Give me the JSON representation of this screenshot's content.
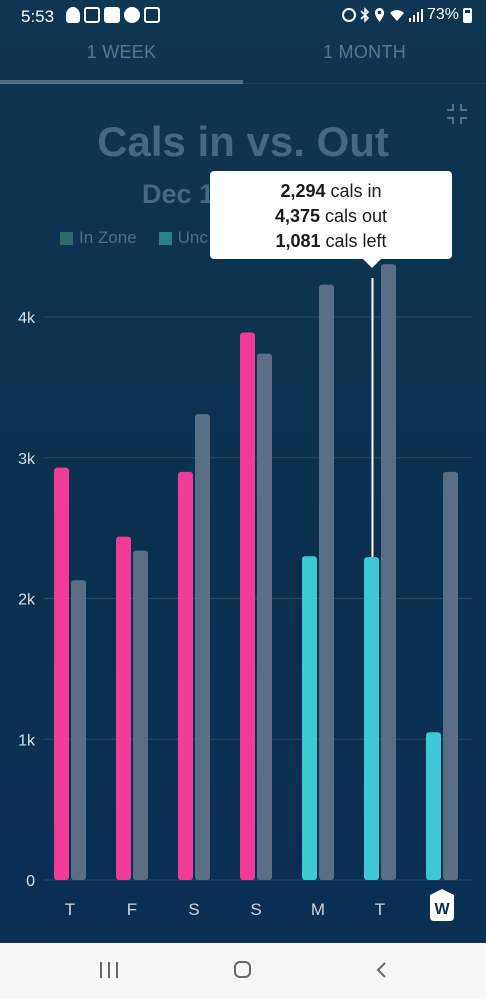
{
  "status_bar": {
    "time": "5:53",
    "battery": "73%"
  },
  "tabs": [
    {
      "label": "1 WEEK",
      "active": true
    },
    {
      "label": "1 MONTH",
      "active": false
    }
  ],
  "colors": {
    "in_zone": "#f03c96",
    "under": "#3ec8d6",
    "cals_out": "#5a6f86",
    "background": "#0c3350"
  },
  "chart_data": {
    "type": "bar",
    "title": "Cals in vs. Out",
    "subtitle": "Dec 1",
    "legend": [
      "In Zone",
      "Unc"
    ],
    "categories": [
      "T",
      "F",
      "S",
      "S",
      "M",
      "T",
      "W"
    ],
    "series": [
      {
        "values": [
          2930,
          2440,
          2900,
          3890,
          2300,
          2294,
          1050
        ],
        "zone": [
          "in_zone",
          "in_zone",
          "in_zone",
          "in_zone",
          "under",
          "under",
          "under"
        ]
      },
      {
        "values": [
          2130,
          2340,
          3310,
          3740,
          4230,
          4375,
          2900
        ]
      }
    ],
    "yticks": [
      "0",
      "1k",
      "2k",
      "3k",
      "4k"
    ],
    "ylim": [
      0,
      4500
    ],
    "selected_index": 5,
    "highlighted_category_index": 6,
    "tooltip": {
      "in_value": "2,294",
      "in_label": "cals in",
      "out_value": "4,375",
      "out_label": "cals out",
      "left_value": "1,081",
      "left_label": "cals left"
    }
  }
}
